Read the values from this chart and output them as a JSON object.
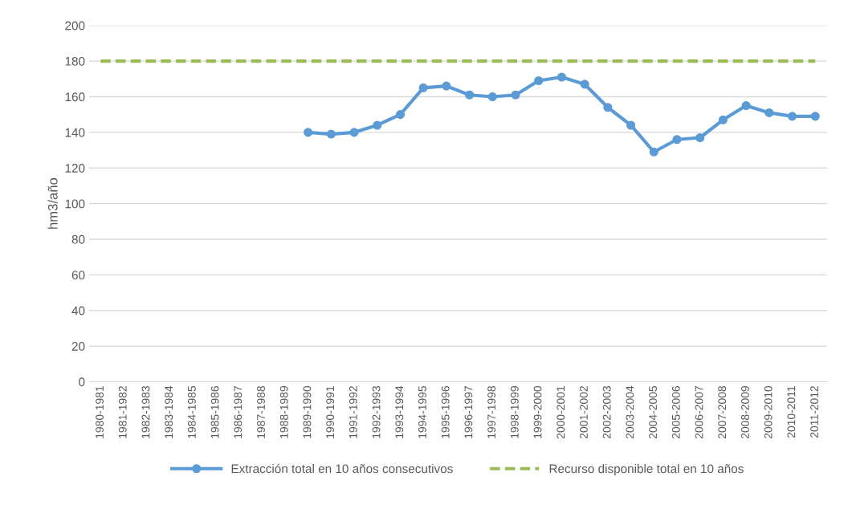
{
  "chart_data": {
    "type": "line",
    "ylabel": "hm3/año",
    "categories": [
      "1980-1981",
      "1981-1982",
      "1982-1983",
      "1983-1984",
      "1984-1985",
      "1985-1986",
      "1986-1987",
      "1987-1988",
      "1988-1989",
      "1989-1990",
      "1990-1991",
      "1991-1992",
      "1992-1993",
      "1993-1994",
      "1994-1995",
      "1995-1996",
      "1996-1997",
      "1997-1998",
      "1998-1999",
      "1999-2000",
      "2000-2001",
      "2001-2002",
      "2002-2003",
      "2003-2004",
      "2004-2005",
      "2005-2006",
      "2006-2007",
      "2007-2008",
      "2008-2009",
      "2009-2010",
      "2010-2011",
      "2011-2012"
    ],
    "series": [
      {
        "name": "Extracción total en 10 años consecutivos",
        "color": "#5b9bd5",
        "marker": "circle",
        "line_style": "solid",
        "values": [
          null,
          null,
          null,
          null,
          null,
          null,
          null,
          null,
          null,
          140,
          139,
          140,
          144,
          150,
          165,
          166,
          161,
          160,
          161,
          169,
          171,
          167,
          154,
          144,
          129,
          136,
          137,
          147,
          155,
          151,
          149,
          149
        ]
      },
      {
        "name": "Recurso disponible total en 10 años",
        "color": "#9bbb59",
        "marker": "none",
        "line_style": "dashed",
        "values": [
          180,
          180,
          180,
          180,
          180,
          180,
          180,
          180,
          180,
          180,
          180,
          180,
          180,
          180,
          180,
          180,
          180,
          180,
          180,
          180,
          180,
          180,
          180,
          180,
          180,
          180,
          180,
          180,
          180,
          180,
          180,
          180
        ]
      }
    ],
    "ylim": [
      0,
      200
    ],
    "yticks": [
      0,
      20,
      40,
      60,
      80,
      100,
      120,
      140,
      160,
      180,
      200
    ],
    "grid": "y",
    "legend": "bottom"
  }
}
